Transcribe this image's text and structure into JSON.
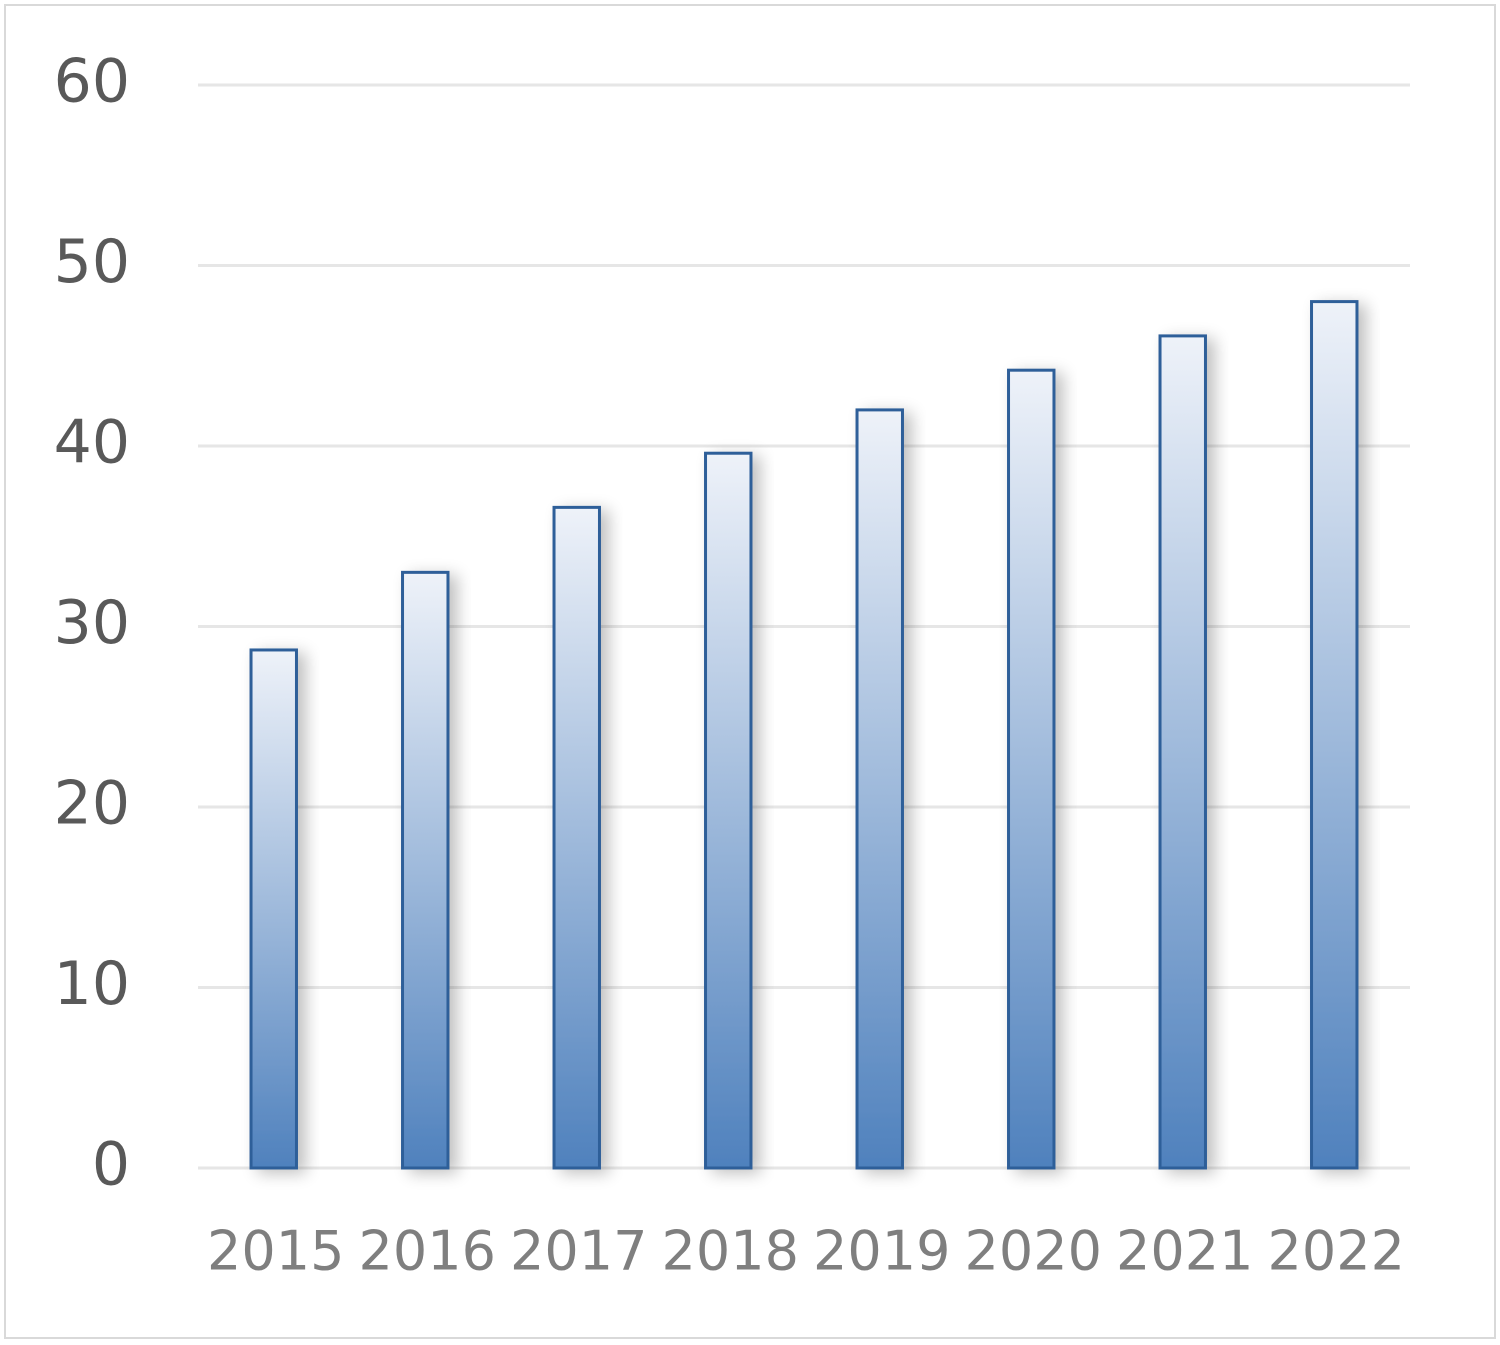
{
  "chart_data": {
    "type": "bar",
    "categories": [
      "2015",
      "2016",
      "2017",
      "2018",
      "2019",
      "2020",
      "2021",
      "2022"
    ],
    "values": [
      28.7,
      33.0,
      36.6,
      39.6,
      42.0,
      44.2,
      46.1,
      48.0
    ],
    "color": "#4f81bd",
    "ylim": [
      0,
      60
    ],
    "yticks": [
      0,
      10,
      20,
      30,
      40,
      50,
      60
    ],
    "grid": true
  }
}
